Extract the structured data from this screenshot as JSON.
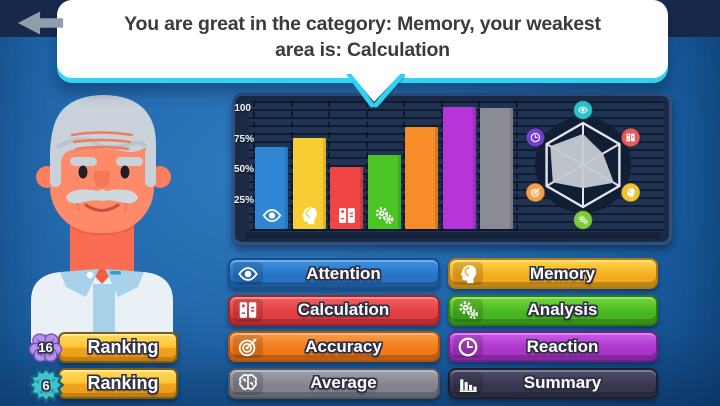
{
  "header": {
    "message": "You are great in the category: Memory, your weakest area is: Calculation",
    "back_icon": "back-arrow"
  },
  "theme": {
    "background_blue": "#1B5FA2",
    "top_band": "#16294B",
    "panel_bg": "#1B2A45",
    "panel_border": "#33507C",
    "bubble_accent_cyan": "#2FD4F2",
    "gold": "#FDC63A"
  },
  "chart_data": [
    {
      "type": "bar",
      "title": "Category scores",
      "categories": [
        "Attention",
        "Memory",
        "Calculation",
        "Analysis",
        "Accuracy",
        "Reaction",
        "Average"
      ],
      "values": [
        67,
        75,
        51,
        61,
        84,
        100,
        99
      ],
      "colors": [
        "#2E86D4",
        "#F7CF33",
        "#EF4545",
        "#4CC425",
        "#F78C28",
        "#B635D8",
        "#8B8B95"
      ],
      "bar_icons": [
        "eye",
        "head",
        "calc",
        "gears",
        null,
        null,
        null
      ],
      "yticks": [
        100,
        75,
        50,
        25
      ],
      "ytick_labels": [
        "100",
        "75%",
        "50%",
        "25%"
      ],
      "ylim": [
        0,
        100
      ],
      "grid": "horizontal-ruled",
      "legend": "none"
    },
    {
      "type": "radar",
      "categories": [
        "Attention",
        "Calculation",
        "Memory",
        "Analysis",
        "Accuracy",
        "Reaction"
      ],
      "values": [
        74,
        55,
        85,
        55,
        83,
        90
      ],
      "max": 100,
      "node_colors": [
        "#29C3C9",
        "#E45B5B",
        "#EDC437",
        "#7FCA3C",
        "#F0A14B",
        "#7440CF"
      ],
      "node_icons": [
        "eye",
        "calc",
        "head",
        "gears",
        "target",
        "clock"
      ],
      "fill": "#C6CBD3",
      "outline": "#E2E6EC"
    }
  ],
  "buttons": [
    {
      "label": "Attention",
      "icon": "eye",
      "color_top": "#3F92DE",
      "color": "#2673C5",
      "border": "#174E8F"
    },
    {
      "label": "Memory",
      "icon": "head",
      "color_top": "#FFD64B",
      "color": "#F3AA1E",
      "border": "#B3790E"
    },
    {
      "label": "Calculation",
      "icon": "calc",
      "color_top": "#F26060",
      "color": "#E23D41",
      "border": "#9E2426"
    },
    {
      "label": "Analysis",
      "icon": "gears",
      "color_top": "#74D83A",
      "color": "#46B51F",
      "border": "#2E7C11"
    },
    {
      "label": "Accuracy",
      "icon": "target",
      "color_top": "#FB9D48",
      "color": "#F0791A",
      "border": "#B0540E"
    },
    {
      "label": "Reaction",
      "icon": "clock",
      "color_top": "#CB5BE9",
      "color": "#A935C9",
      "border": "#73208F"
    },
    {
      "label": "Average",
      "icon": "brain",
      "color_top": "#A0A0AC",
      "color": "#82828E",
      "border": "#54545E"
    },
    {
      "label": "Summary",
      "icon": "bars",
      "color_top": "#4E4E6C",
      "color": "#36364E",
      "border": "#1E1E30"
    }
  ],
  "ranking": {
    "items": [
      {
        "label": "Ranking",
        "badge": "16",
        "badge_icon": "brain-badge"
      },
      {
        "label": "Ranking",
        "badge": "6",
        "badge_icon": "germ-badge"
      }
    ]
  }
}
